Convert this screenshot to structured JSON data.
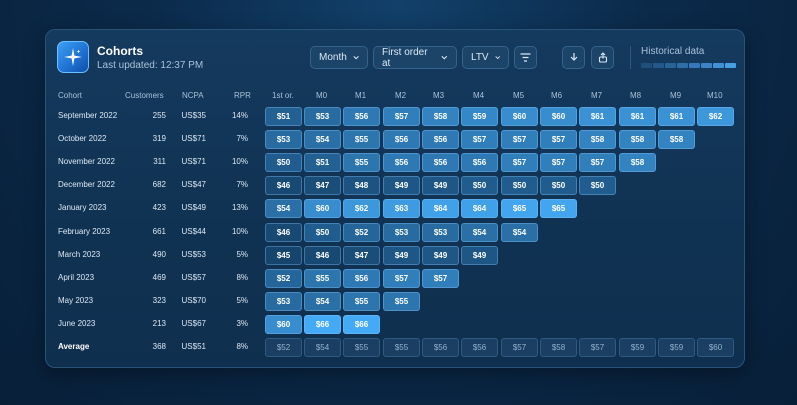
{
  "header": {
    "title": "Cohorts",
    "subtitle": "Last updated: 12:37 PM"
  },
  "controls": {
    "period": "Month",
    "order_filter": "First order at",
    "metric": "LTV"
  },
  "historical": {
    "label": "Historical data"
  },
  "columns": [
    "Cohort",
    "Customers",
    "NCPA",
    "RPR",
    "1st or.",
    "M0",
    "M1",
    "M2",
    "M3",
    "M4",
    "M5",
    "M6",
    "M7",
    "M8",
    "M9",
    "M10"
  ],
  "rows": [
    {
      "cohort": "September 2022",
      "customers": "255",
      "ncpa": "US$35",
      "rpr": "14%",
      "values": [
        "$51",
        "$53",
        "$56",
        "$57",
        "$58",
        "$59",
        "$60",
        "$60",
        "$61",
        "$61",
        "$61",
        "$62"
      ]
    },
    {
      "cohort": "October 2022",
      "customers": "319",
      "ncpa": "US$71",
      "rpr": "7%",
      "values": [
        "$53",
        "$54",
        "$55",
        "$56",
        "$56",
        "$57",
        "$57",
        "$57",
        "$58",
        "$58",
        "$58"
      ]
    },
    {
      "cohort": "November 2022",
      "customers": "311",
      "ncpa": "US$71",
      "rpr": "10%",
      "values": [
        "$50",
        "$51",
        "$55",
        "$56",
        "$56",
        "$56",
        "$57",
        "$57",
        "$57",
        "$58"
      ]
    },
    {
      "cohort": "December 2022",
      "customers": "682",
      "ncpa": "US$47",
      "rpr": "7%",
      "values": [
        "$46",
        "$47",
        "$48",
        "$49",
        "$49",
        "$50",
        "$50",
        "$50",
        "$50"
      ]
    },
    {
      "cohort": "January 2023",
      "customers": "423",
      "ncpa": "US$49",
      "rpr": "13%",
      "values": [
        "$54",
        "$60",
        "$62",
        "$63",
        "$64",
        "$64",
        "$65",
        "$65"
      ]
    },
    {
      "cohort": "February 2023",
      "customers": "661",
      "ncpa": "US$44",
      "rpr": "10%",
      "values": [
        "$46",
        "$50",
        "$52",
        "$53",
        "$53",
        "$54",
        "$54"
      ]
    },
    {
      "cohort": "March 2023",
      "customers": "490",
      "ncpa": "US$53",
      "rpr": "5%",
      "values": [
        "$45",
        "$46",
        "$47",
        "$49",
        "$49",
        "$49"
      ]
    },
    {
      "cohort": "April 2023",
      "customers": "469",
      "ncpa": "US$57",
      "rpr": "8%",
      "values": [
        "$52",
        "$55",
        "$56",
        "$57",
        "$57"
      ]
    },
    {
      "cohort": "May 2023",
      "customers": "323",
      "ncpa": "US$70",
      "rpr": "5%",
      "values": [
        "$53",
        "$54",
        "$55",
        "$55"
      ]
    },
    {
      "cohort": "June 2023",
      "customers": "213",
      "ncpa": "US$67",
      "rpr": "3%",
      "values": [
        "$60",
        "$66",
        "$66"
      ]
    }
  ],
  "average": {
    "label": "Average",
    "customers": "368",
    "ncpa": "US$51",
    "rpr": "8%",
    "values": [
      "$52",
      "$54",
      "$55",
      "$55",
      "$56",
      "$56",
      "$57",
      "$58",
      "$57",
      "$59",
      "$59",
      "$60"
    ]
  },
  "colors": {
    "accent": "#3fa3f3",
    "cell_low": "#15446c",
    "cell_high": "#45aaf5",
    "average_cell": "#1b3f62"
  }
}
